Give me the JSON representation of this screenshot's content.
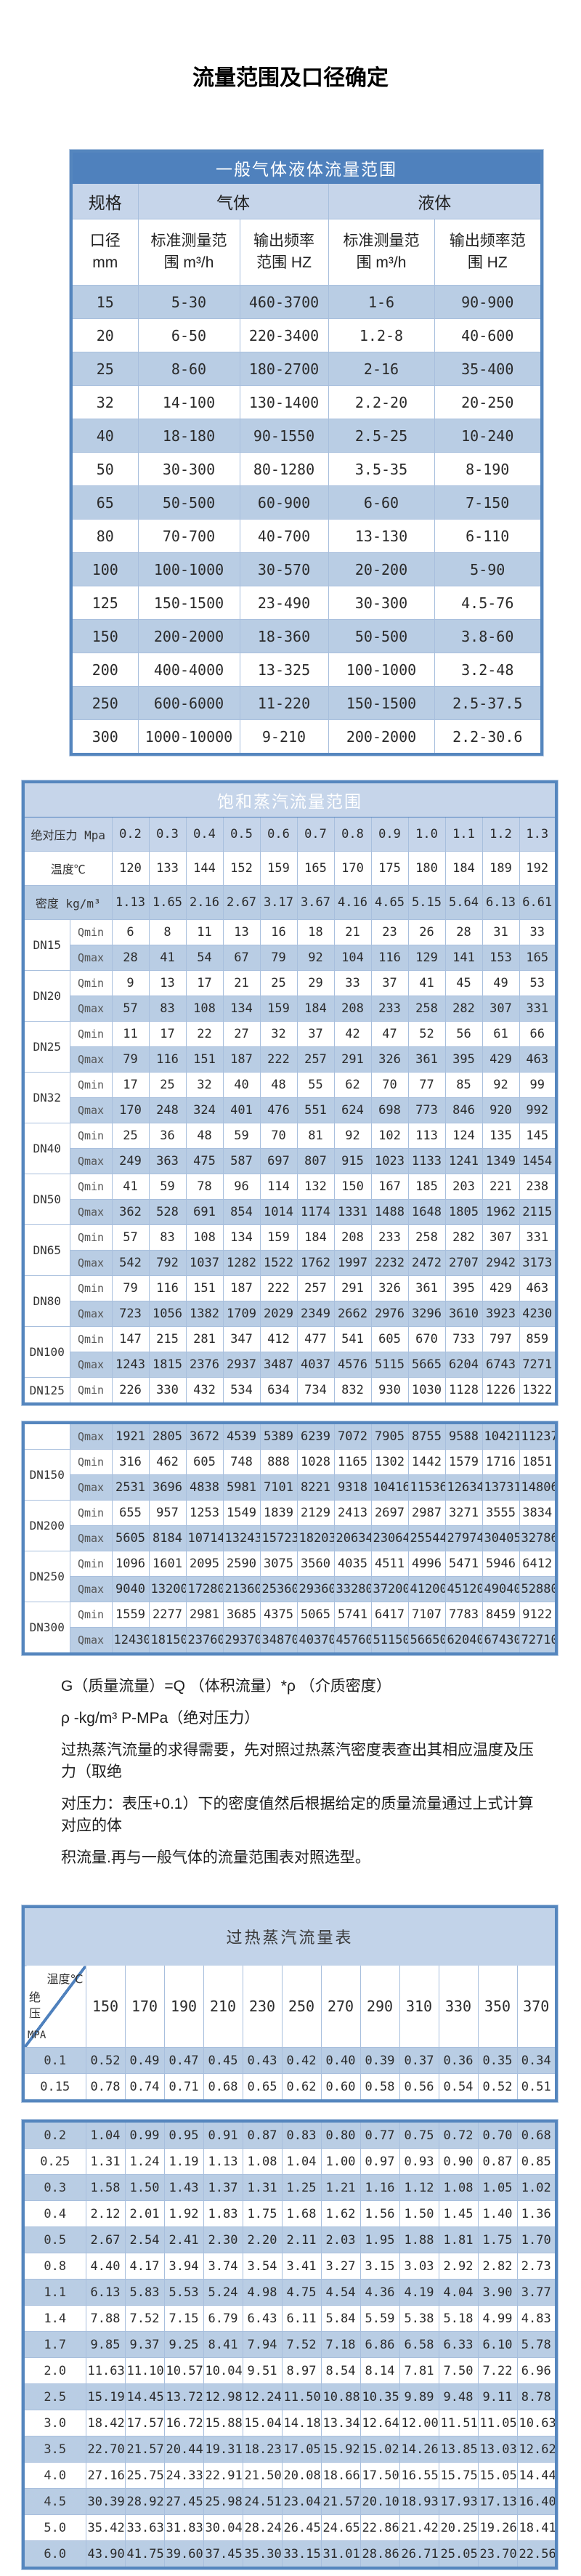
{
  "page": {
    "title": "流量范围及口径确定"
  },
  "colors": {
    "title_bar_blue": "#4f81bd",
    "light_blue_header": "#c6d5ea",
    "row_highlight_blue": "#b9cde4",
    "table_border_blue": "#5586be",
    "grid_line_blue": "#a8bfdd"
  },
  "table1": {
    "title": "一般气体液体流量范围",
    "headers": {
      "spec": "规格",
      "gas": "气体",
      "liquid": "液体",
      "diameter": "口径 mm",
      "range": "标准测量范围 m³/h",
      "freq": "输出频率范围 HZ"
    },
    "rows": [
      [
        "15",
        "5-30",
        "460-3700",
        "1-6",
        "90-900"
      ],
      [
        "20",
        "6-50",
        "220-3400",
        "1.2-8",
        "40-600"
      ],
      [
        "25",
        "8-60",
        "180-2700",
        "2-16",
        "35-400"
      ],
      [
        "32",
        "14-100",
        "130-1400",
        "2.2-20",
        "20-250"
      ],
      [
        "40",
        "18-180",
        "90-1550",
        "2.5-25",
        "10-240"
      ],
      [
        "50",
        "30-300",
        "80-1280",
        "3.5-35",
        "8-190"
      ],
      [
        "65",
        "50-500",
        "60-900",
        "6-60",
        "7-150"
      ],
      [
        "80",
        "70-700",
        "40-700",
        "13-130",
        "6-110"
      ],
      [
        "100",
        "100-1000",
        "30-570",
        "20-200",
        "5-90"
      ],
      [
        "125",
        "150-1500",
        "23-490",
        "30-300",
        "4.5-76"
      ],
      [
        "150",
        "200-2000",
        "18-360",
        "50-500",
        "3.8-60"
      ],
      [
        "200",
        "400-4000",
        "13-325",
        "100-1000",
        "3.2-48"
      ],
      [
        "250",
        "600-6000",
        "11-220",
        "150-1500",
        "2.5-37.5"
      ],
      [
        "300",
        "1000-10000",
        "9-210",
        "200-2000",
        "2.2-30.6"
      ]
    ]
  },
  "saturated": {
    "title": "饱和蒸汽流量范围",
    "blockA": [
      {
        "label": "绝对压力 Mpa",
        "values": [
          "0.2",
          "0.3",
          "0.4",
          "0.5",
          "0.6",
          "0.7",
          "0.8",
          "0.9",
          "1.0",
          "1.1",
          "1.2",
          "1.3"
        ]
      },
      {
        "label": "温度℃",
        "values": [
          "120",
          "133",
          "144",
          "152",
          "159",
          "165",
          "170",
          "175",
          "180",
          "184",
          "189",
          "192"
        ]
      },
      {
        "label": "密度 kg/m³",
        "values": [
          "1.13",
          "1.65",
          "2.16",
          "2.67",
          "3.17",
          "3.67",
          "4.16",
          "4.65",
          "5.15",
          "5.64",
          "6.13",
          "6.61"
        ]
      },
      {
        "label": "DN15",
        "span": 2,
        "sub": "Qmin",
        "values": [
          "6",
          "8",
          "11",
          "13",
          "16",
          "18",
          "21",
          "23",
          "26",
          "28",
          "31",
          "33"
        ]
      },
      {
        "sub": "Qmax",
        "values": [
          "28",
          "41",
          "54",
          "67",
          "79",
          "92",
          "104",
          "116",
          "129",
          "141",
          "153",
          "165"
        ]
      },
      {
        "label": "DN20",
        "span": 2,
        "sub": "Qmin",
        "values": [
          "9",
          "13",
          "17",
          "21",
          "25",
          "29",
          "33",
          "37",
          "41",
          "45",
          "49",
          "53"
        ]
      },
      {
        "sub": "Qmax",
        "values": [
          "57",
          "83",
          "108",
          "134",
          "159",
          "184",
          "208",
          "233",
          "258",
          "282",
          "307",
          "331"
        ]
      },
      {
        "label": "DN25",
        "span": 2,
        "sub": "Qmin",
        "values": [
          "11",
          "17",
          "22",
          "27",
          "32",
          "37",
          "42",
          "47",
          "52",
          "56",
          "61",
          "66"
        ]
      },
      {
        "sub": "Qmax",
        "values": [
          "79",
          "116",
          "151",
          "187",
          "222",
          "257",
          "291",
          "326",
          "361",
          "395",
          "429",
          "463"
        ]
      },
      {
        "label": "DN32",
        "span": 2,
        "sub": "Qmin",
        "values": [
          "17",
          "25",
          "32",
          "40",
          "48",
          "55",
          "62",
          "70",
          "77",
          "85",
          "92",
          "99"
        ]
      },
      {
        "sub": "Qmax",
        "values": [
          "170",
          "248",
          "324",
          "401",
          "476",
          "551",
          "624",
          "698",
          "773",
          "846",
          "920",
          "992"
        ]
      },
      {
        "label": "DN40",
        "span": 2,
        "sub": "Qmin",
        "values": [
          "25",
          "36",
          "48",
          "59",
          "70",
          "81",
          "92",
          "102",
          "113",
          "124",
          "135",
          "145"
        ]
      },
      {
        "sub": "Qmax",
        "values": [
          "249",
          "363",
          "475",
          "587",
          "697",
          "807",
          "915",
          "1023",
          "1133",
          "1241",
          "1349",
          "1454"
        ]
      },
      {
        "label": "DN50",
        "span": 2,
        "sub": "Qmin",
        "values": [
          "41",
          "59",
          "78",
          "96",
          "114",
          "132",
          "150",
          "167",
          "185",
          "203",
          "221",
          "238"
        ]
      },
      {
        "sub": "Qmax",
        "values": [
          "362",
          "528",
          "691",
          "854",
          "1014",
          "1174",
          "1331",
          "1488",
          "1648",
          "1805",
          "1962",
          "2115"
        ]
      },
      {
        "label": "DN65",
        "span": 2,
        "sub": "Qmin",
        "values": [
          "57",
          "83",
          "108",
          "134",
          "159",
          "184",
          "208",
          "233",
          "258",
          "282",
          "307",
          "331"
        ]
      },
      {
        "sub": "Qmax",
        "values": [
          "542",
          "792",
          "1037",
          "1282",
          "1522",
          "1762",
          "1997",
          "2232",
          "2472",
          "2707",
          "2942",
          "3173"
        ]
      },
      {
        "label": "DN80",
        "span": 2,
        "sub": "Qmin",
        "values": [
          "79",
          "116",
          "151",
          "187",
          "222",
          "257",
          "291",
          "326",
          "361",
          "395",
          "429",
          "463"
        ]
      },
      {
        "sub": "Qmax",
        "values": [
          "723",
          "1056",
          "1382",
          "1709",
          "2029",
          "2349",
          "2662",
          "2976",
          "3296",
          "3610",
          "3923",
          "4230"
        ]
      },
      {
        "label": "DN100",
        "span": 2,
        "sub": "Qmin",
        "values": [
          "147",
          "215",
          "281",
          "347",
          "412",
          "477",
          "541",
          "605",
          "670",
          "733",
          "797",
          "859"
        ]
      },
      {
        "sub": "Qmax",
        "values": [
          "1243",
          "1815",
          "2376",
          "2937",
          "3487",
          "4037",
          "4576",
          "5115",
          "5665",
          "6204",
          "6743",
          "7271"
        ]
      },
      {
        "label": "DN125",
        "span": 1,
        "sub": "Qmin",
        "values": [
          "226",
          "330",
          "432",
          "534",
          "634",
          "734",
          "832",
          "930",
          "1030",
          "1128",
          "1226",
          "1322"
        ]
      }
    ],
    "blockB": [
      {
        "label": "",
        "span": 1,
        "sub": "Qmax",
        "values": [
          "1921",
          "2805",
          "3672",
          "4539",
          "5389",
          "6239",
          "7072",
          "7905",
          "8755",
          "9588",
          "10421",
          "11237"
        ]
      },
      {
        "label": "DN150",
        "span": 2,
        "sub": "Qmin",
        "values": [
          "316",
          "462",
          "605",
          "748",
          "888",
          "1028",
          "1165",
          "1302",
          "1442",
          "1579",
          "1716",
          "1851"
        ]
      },
      {
        "sub": "Qmax",
        "values": [
          "2531",
          "3696",
          "4838",
          "5981",
          "7101",
          "8221",
          "9318",
          "10416",
          "11536",
          "12634",
          "13731",
          "14806"
        ]
      },
      {
        "label": "DN200",
        "span": 2,
        "sub": "Qmin",
        "values": [
          "655",
          "957",
          "1253",
          "1549",
          "1839",
          "2129",
          "2413",
          "2697",
          "2987",
          "3271",
          "3555",
          "3834"
        ]
      },
      {
        "sub": "Qmax",
        "values": [
          "5605",
          "8184",
          "10714",
          "13243",
          "15723",
          "18203",
          "20634",
          "23064",
          "25544",
          "27974",
          "30405",
          "32786"
        ]
      },
      {
        "label": "DN250",
        "span": 2,
        "sub": "Qmin",
        "values": [
          "1096",
          "1601",
          "2095",
          "2590",
          "3075",
          "3560",
          "4035",
          "4511",
          "4996",
          "5471",
          "5946",
          "6412"
        ]
      },
      {
        "sub": "Qmax",
        "values": [
          "9040",
          "13200",
          "17280",
          "21360",
          "25360",
          "29360",
          "33280",
          "37200",
          "41200",
          "45120",
          "49040",
          "52880"
        ]
      },
      {
        "label": "DN300",
        "span": 2,
        "sub": "Qmin",
        "values": [
          "1559",
          "2277",
          "2981",
          "3685",
          "4375",
          "5065",
          "5741",
          "6417",
          "7107",
          "7783",
          "8459",
          "9122"
        ]
      },
      {
        "sub": "Qmax",
        "values": [
          "12430",
          "18150",
          "23760",
          "29370",
          "34870",
          "40370",
          "45760",
          "51150",
          "56650",
          "62040",
          "67430",
          "72710"
        ]
      }
    ]
  },
  "notes": {
    "formula": "G（质量流量）=Q （体积流量）*ρ （介质密度）",
    "units": "ρ -kg/m³ P-MPa（绝对压力）",
    "para": [
      "过热蒸汽流量的求得需要，先对照过热蒸汽密度表查出其相应温度及压力（取绝",
      "对压力：表压+0.1）下的密度值然后根据给定的质量流量通过上式计算对应的体",
      "积流量.再与一般气体的流量范围表对照选型。"
    ]
  },
  "superheated": {
    "title": "过热蒸汽流量表",
    "corner": {
      "top": "温度℃",
      "side": "绝压",
      "unit": "MPA"
    },
    "temps": [
      "150",
      "170",
      "190",
      "210",
      "230",
      "250",
      "270",
      "290",
      "310",
      "330",
      "350",
      "370"
    ],
    "blockA": [
      {
        "label": "0.1",
        "values": [
          "0.52",
          "0.49",
          "0.47",
          "0.45",
          "0.43",
          "0.42",
          "0.40",
          "0.39",
          "0.37",
          "0.36",
          "0.35",
          "0.34"
        ]
      },
      {
        "label": "0.15",
        "values": [
          "0.78",
          "0.74",
          "0.71",
          "0.68",
          "0.65",
          "0.62",
          "0.60",
          "0.58",
          "0.56",
          "0.54",
          "0.52",
          "0.51"
        ]
      }
    ],
    "blockB": [
      {
        "label": "0.2",
        "values": [
          "1.04",
          "0.99",
          "0.95",
          "0.91",
          "0.87",
          "0.83",
          "0.80",
          "0.77",
          "0.75",
          "0.72",
          "0.70",
          "0.68"
        ]
      },
      {
        "label": "0.25",
        "values": [
          "1.31",
          "1.24",
          "1.19",
          "1.13",
          "1.08",
          "1.04",
          "1.00",
          "0.97",
          "0.93",
          "0.90",
          "0.87",
          "0.85"
        ]
      },
      {
        "label": "0.3",
        "values": [
          "1.58",
          "1.50",
          "1.43",
          "1.37",
          "1.31",
          "1.25",
          "1.21",
          "1.16",
          "1.12",
          "1.08",
          "1.05",
          "1.02"
        ]
      },
      {
        "label": "0.4",
        "values": [
          "2.12",
          "2.01",
          "1.92",
          "1.83",
          "1.75",
          "1.68",
          "1.62",
          "1.56",
          "1.50",
          "1.45",
          "1.40",
          "1.36"
        ]
      },
      {
        "label": "0.5",
        "values": [
          "2.67",
          "2.54",
          "2.41",
          "2.30",
          "2.20",
          "2.11",
          "2.03",
          "1.95",
          "1.88",
          "1.81",
          "1.75",
          "1.70"
        ]
      },
      {
        "label": "0.8",
        "values": [
          "4.40",
          "4.17",
          "3.94",
          "3.74",
          "3.54",
          "3.41",
          "3.27",
          "3.15",
          "3.03",
          "2.92",
          "2.82",
          "2.73"
        ]
      },
      {
        "label": "1.1",
        "values": [
          "6.13",
          "5.83",
          "5.53",
          "5.24",
          "4.98",
          "4.75",
          "4.54",
          "4.36",
          "4.19",
          "4.04",
          "3.90",
          "3.77"
        ]
      },
      {
        "label": "1.4",
        "values": [
          "7.88",
          "7.52",
          "7.15",
          "6.79",
          "6.43",
          "6.11",
          "5.84",
          "5.59",
          "5.38",
          "5.18",
          "4.99",
          "4.83"
        ]
      },
      {
        "label": "1.7",
        "values": [
          "9.85",
          "9.37",
          "9.25",
          "8.41",
          "7.94",
          "7.52",
          "7.18",
          "6.86",
          "6.58",
          "6.33",
          "6.10",
          "5.78"
        ]
      },
      {
        "label": "2.0",
        "values": [
          "11.63",
          "11.10",
          "10.57",
          "10.04",
          "9.51",
          "8.97",
          "8.54",
          "8.14",
          "7.81",
          "7.50",
          "7.22",
          "6.96"
        ]
      },
      {
        "label": "2.5",
        "values": [
          "15.19",
          "14.45",
          "13.72",
          "12.98",
          "12.24",
          "11.50",
          "10.88",
          "10.35",
          "9.89",
          "9.48",
          "9.11",
          "8.78"
        ]
      },
      {
        "label": "3.0",
        "values": [
          "18.42",
          "17.57",
          "16.72",
          "15.88",
          "15.04",
          "14.18",
          "13.34",
          "12.64",
          "12.00",
          "11.51",
          "11.05",
          "10.63"
        ]
      },
      {
        "label": "3.5",
        "values": [
          "22.70",
          "21.57",
          "20.44",
          "19.31",
          "18.23",
          "17.05",
          "15.92",
          "15.02",
          "14.26",
          "13.85",
          "13.03",
          "12.62"
        ]
      },
      {
        "label": "4.0",
        "values": [
          "27.16",
          "25.75",
          "24.33",
          "22.91",
          "21.50",
          "20.08",
          "18.66",
          "17.50",
          "16.55",
          "15.75",
          "15.05",
          "14.44"
        ]
      },
      {
        "label": "4.5",
        "values": [
          "30.39",
          "28.92",
          "27.45",
          "25.98",
          "24.51",
          "23.04",
          "21.57",
          "20.10",
          "18.93",
          "17.93",
          "17.13",
          "16.40"
        ]
      },
      {
        "label": "5.0",
        "values": [
          "35.42",
          "33.63",
          "31.83",
          "30.04",
          "28.24",
          "26.45",
          "24.65",
          "22.86",
          "21.42",
          "20.25",
          "19.26",
          "18.41"
        ]
      },
      {
        "label": "6.0",
        "values": [
          "43.90",
          "41.75",
          "39.60",
          "37.45",
          "35.30",
          "33.15",
          "31.01",
          "28.86",
          "26.71",
          "25.05",
          "23.70",
          "22.56"
        ]
      }
    ]
  }
}
